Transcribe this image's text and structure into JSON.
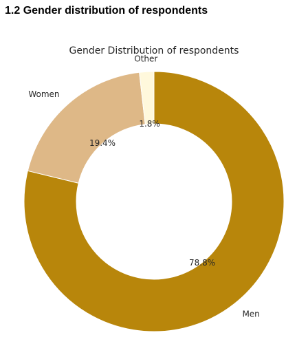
{
  "page": {
    "heading": "1.2 Gender distribution of respondents"
  },
  "chart_data": {
    "type": "pie",
    "donut": true,
    "title": "Gender Distribution of respondents",
    "start_angle_deg": 90,
    "direction": "clockwise",
    "slices": [
      {
        "label": "Men",
        "value": 78.8,
        "pct_label": "78.8%",
        "color": "#B8860B"
      },
      {
        "label": "Women",
        "value": 19.4,
        "pct_label": "19.4%",
        "color": "#DEB887"
      },
      {
        "label": "Other",
        "value": 1.8,
        "pct_label": "1.8%",
        "color": "#FFF8DC"
      }
    ]
  }
}
